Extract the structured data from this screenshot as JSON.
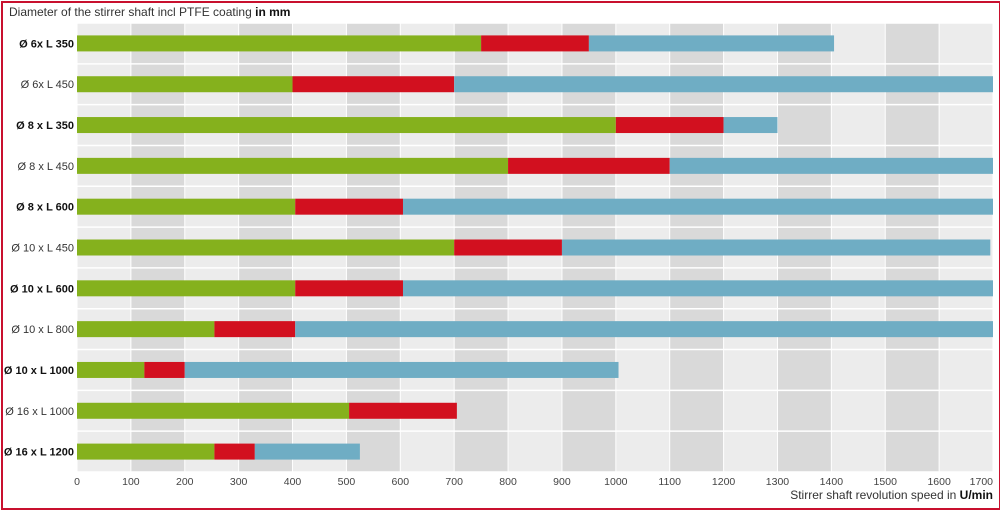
{
  "chart_data": {
    "type": "bar",
    "orientation": "horizontal",
    "stacked": true,
    "title": "Diameter of the stirrer shaft incl PTFE coating",
    "title_bold": "in mm",
    "xlabel": "Stirrer shaft revolution speed in",
    "xlabel_bold": "U/min",
    "xlim": [
      0,
      1700
    ],
    "xticks": [
      0,
      100,
      200,
      300,
      400,
      500,
      600,
      700,
      800,
      900,
      1000,
      1100,
      1200,
      1300,
      1400,
      1500,
      1600,
      1700
    ],
    "grid": true,
    "legend": "none",
    "categories": [
      "Ø 6x L 350",
      "Ø 6x L 450",
      "Ø 8 x L 350",
      "Ø 8 x L 450",
      "Ø 8 x L 600",
      "Ø 10 x L 450",
      "Ø 10 x L 600",
      "Ø 10 x L 800",
      "Ø 10 x L 1000",
      "Ø 16 x L 1000",
      "Ø 16 x L 1200"
    ],
    "bold_categories": [
      true,
      false,
      true,
      false,
      true,
      false,
      true,
      false,
      true,
      false,
      true
    ],
    "series": [
      {
        "color": "#85b11d",
        "values": [
          750,
          400,
          1000,
          800,
          405,
          700,
          405,
          255,
          125,
          505,
          255
        ]
      },
      {
        "color": "#d2101f",
        "values": [
          200,
          300,
          200,
          300,
          200,
          200,
          200,
          150,
          75,
          200,
          75
        ]
      },
      {
        "color": "#6fadc4",
        "values": [
          455,
          1000,
          100,
          600,
          1095,
          795,
          1095,
          1295,
          805,
          0,
          195
        ]
      }
    ]
  }
}
